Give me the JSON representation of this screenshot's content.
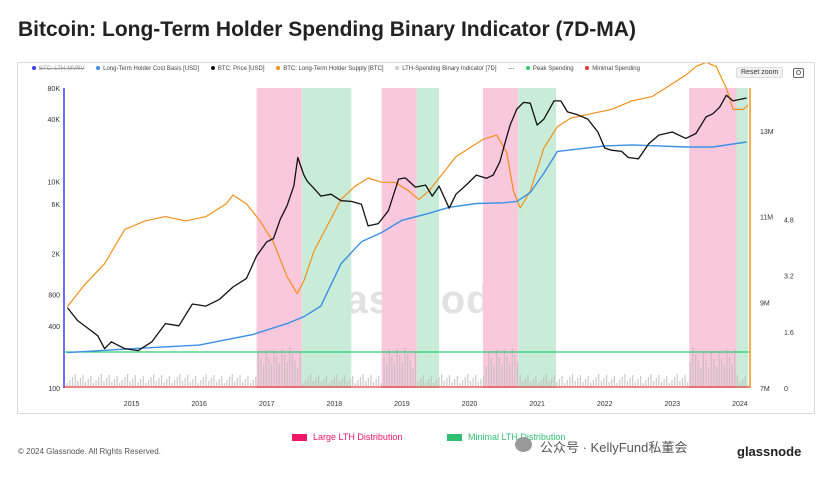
{
  "title": "Bitcoin: Long-Term Holder Spending Binary Indicator (7D-MA)",
  "legend": [
    {
      "label": "BTC: LTH-MVRV",
      "color": "#3b3bff",
      "hidden": true
    },
    {
      "label": "Long-Term Holder Cost Basis [USD]",
      "color": "#3b8fe5"
    },
    {
      "label": "BTC: Price [USD]",
      "color": "#111111"
    },
    {
      "label": "BTC: Long-Term Holder Supply [BTC]",
      "color": "#f39019"
    },
    {
      "label": "LTH-Spending Binary Indicator [7D]",
      "color": "#cfcfcf"
    },
    {
      "label": "---",
      "color": "#777777"
    },
    {
      "label": "Peak Spending",
      "color": "#2ecc71"
    },
    {
      "label": "Minimal Spending",
      "color": "#e53935"
    }
  ],
  "reset_zoom": "Reset zoom",
  "watermark": "glassnode",
  "bottom_legend": [
    {
      "label": "Large LTH Distribution",
      "color": "#f0176a"
    },
    {
      "label": "Minimal LTH Distribution",
      "color": "#2fbf71"
    }
  ],
  "copyright": "© 2024 Glassnode. All Rights Reserved.",
  "wechat_text": "公众号 · KellyFund私董会",
  "brand": "glassnode",
  "chart_data": {
    "type": "line",
    "title": "Bitcoin: Long-Term Holder Spending Binary Indicator (7D-MA)",
    "x_ticks": [
      "2015",
      "2016",
      "2017",
      "2018",
      "2019",
      "2020",
      "2021",
      "2022",
      "2023",
      "2024"
    ],
    "x_range": [
      2014.5,
      2024.65
    ],
    "y_left_ticks": [
      "80K",
      "40K",
      "10K",
      "6K",
      "2K",
      "800",
      "400",
      "100"
    ],
    "y_left_range": [
      100,
      80000
    ],
    "y_left_scale": "log",
    "y_right1_ticks": [
      "13M",
      "11M",
      "9M",
      "7M"
    ],
    "y_right1_range": [
      7,
      14
    ],
    "y_right2_ticks": [
      "4.8",
      "3.2",
      "1.6",
      "0"
    ],
    "y_right2_range": [
      0,
      6.4
    ],
    "large_lth_distribution_periods": [
      [
        2017.35,
        2018.02
      ],
      [
        2019.2,
        2019.72
      ],
      [
        2020.7,
        2021.22
      ],
      [
        2023.75,
        2024.45
      ]
    ],
    "minimal_lth_distribution_periods": [
      [
        2018.02,
        2018.75
      ],
      [
        2019.72,
        2020.05
      ],
      [
        2021.22,
        2021.78
      ],
      [
        2024.45,
        2024.62
      ]
    ],
    "series": [
      {
        "name": "BTC: Price [USD]",
        "axis": "left",
        "x": [
          2014.55,
          2014.7,
          2014.85,
          2015.0,
          2015.1,
          2015.2,
          2015.4,
          2015.6,
          2015.8,
          2016.0,
          2016.2,
          2016.4,
          2016.6,
          2016.8,
          2017.0,
          2017.2,
          2017.35,
          2017.5,
          2017.6,
          2017.7,
          2017.8,
          2017.9,
          2017.96,
          2018.05,
          2018.1,
          2018.2,
          2018.3,
          2018.45,
          2018.6,
          2018.75,
          2018.9,
          2019.0,
          2019.15,
          2019.3,
          2019.45,
          2019.55,
          2019.7,
          2019.85,
          2019.95,
          2020.05,
          2020.2,
          2020.3,
          2020.45,
          2020.6,
          2020.75,
          2020.85,
          2020.95,
          2021.02,
          2021.1,
          2021.2,
          2021.3,
          2021.4,
          2021.5,
          2021.6,
          2021.75,
          2021.85,
          2021.95,
          2022.1,
          2022.25,
          2022.4,
          2022.5,
          2022.6,
          2022.75,
          2022.85,
          2023.0,
          2023.15,
          2023.3,
          2023.5,
          2023.7,
          2023.85,
          2024.0,
          2024.1,
          2024.2,
          2024.3,
          2024.4,
          2024.5,
          2024.6
        ],
        "values": [
          600,
          450,
          380,
          320,
          240,
          280,
          240,
          230,
          280,
          420,
          400,
          650,
          620,
          720,
          950,
          1150,
          1900,
          2600,
          2800,
          4300,
          5800,
          9000,
          17000,
          11500,
          10000,
          8500,
          7200,
          7500,
          6500,
          6400,
          6000,
          3700,
          3900,
          5200,
          10500,
          10800,
          8800,
          9200,
          7200,
          9000,
          5500,
          7500,
          9200,
          11500,
          10700,
          11500,
          15500,
          23000,
          35000,
          50000,
          58000,
          57000,
          35000,
          40000,
          60000,
          60000,
          47000,
          44000,
          40000,
          30000,
          21000,
          20000,
          19500,
          17000,
          16500,
          23000,
          28000,
          30000,
          26000,
          29000,
          42000,
          45000,
          52000,
          68000,
          60000,
          62000,
          64000
        ]
      },
      {
        "name": "Long-Term Holder Cost Basis [USD]",
        "axis": "left",
        "x": [
          2014.55,
          2015.5,
          2016.5,
          2017.3,
          2017.8,
          2018.05,
          2018.3,
          2018.6,
          2018.9,
          2019.2,
          2019.5,
          2019.9,
          2020.2,
          2020.6,
          2021.0,
          2021.2,
          2021.4,
          2021.6,
          2021.8,
          2022.1,
          2022.5,
          2022.9,
          2023.3,
          2023.7,
          2024.1,
          2024.6
        ],
        "values": [
          220,
          240,
          260,
          330,
          420,
          490,
          620,
          1600,
          2600,
          3200,
          4200,
          4900,
          5600,
          6100,
          6200,
          6400,
          7800,
          12000,
          19500,
          20500,
          22000,
          22500,
          22000,
          21500,
          21500,
          24000
        ]
      },
      {
        "name": "BTC: Long-Term Holder Supply [BTC]",
        "axis": "right_supply_millions",
        "x": [
          2014.55,
          2014.8,
          2015.1,
          2015.4,
          2015.7,
          2016.0,
          2016.3,
          2016.6,
          2016.9,
          2017.0,
          2017.2,
          2017.4,
          2017.6,
          2017.8,
          2017.95,
          2018.05,
          2018.2,
          2018.4,
          2018.6,
          2018.8,
          2019.0,
          2019.2,
          2019.4,
          2019.6,
          2019.75,
          2019.9,
          2020.1,
          2020.3,
          2020.5,
          2020.7,
          2020.9,
          2021.05,
          2021.15,
          2021.25,
          2021.4,
          2021.6,
          2021.8,
          2022.0,
          2022.3,
          2022.6,
          2022.9,
          2023.2,
          2023.5,
          2023.7,
          2023.85,
          2024.0,
          2024.15,
          2024.3,
          2024.4,
          2024.55,
          2024.62
        ],
        "values": [
          8.9,
          9.4,
          9.9,
          10.7,
          10.9,
          11.0,
          10.9,
          11.0,
          11.3,
          11.5,
          11.3,
          10.9,
          10.4,
          9.6,
          9.2,
          9.5,
          10.2,
          10.8,
          11.4,
          11.7,
          11.9,
          11.8,
          11.8,
          11.6,
          11.4,
          11.6,
          12.0,
          12.4,
          12.6,
          12.8,
          12.9,
          12.5,
          11.6,
          11.2,
          11.6,
          12.6,
          13.1,
          13.3,
          13.4,
          13.5,
          13.7,
          13.8,
          14.1,
          14.3,
          14.5,
          14.6,
          14.5,
          14.0,
          13.5,
          13.5,
          13.6
        ]
      }
    ]
  }
}
